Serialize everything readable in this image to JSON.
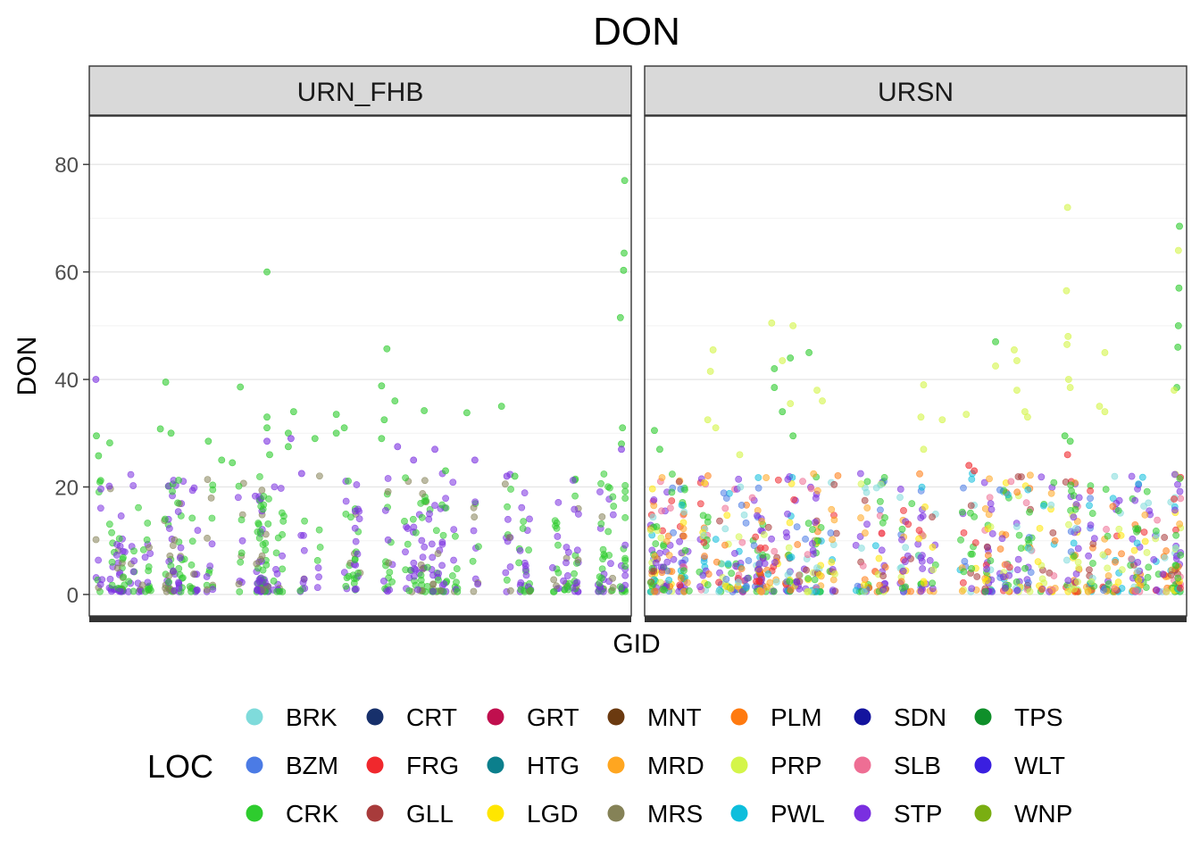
{
  "chart_data": {
    "type": "scatter",
    "title": "DON",
    "xlabel": "GID",
    "ylabel": "DON",
    "ylim": [
      -4,
      89
    ],
    "yticks": [
      0,
      20,
      40,
      60,
      80
    ],
    "y_gridlines": [
      0,
      10,
      20,
      30,
      40,
      50,
      60,
      70,
      80
    ],
    "grid": true,
    "facets": [
      "URN_FHB",
      "URSN"
    ],
    "point_opacity": 0.55,
    "legend": {
      "title": "LOC",
      "position": "bottom",
      "entries": [
        {
          "label": "BRK",
          "color": "#7FDBDB"
        },
        {
          "label": "BZM",
          "color": "#4B7BE5"
        },
        {
          "label": "CRK",
          "color": "#2ECC2E"
        },
        {
          "label": "CRT",
          "color": "#17306B"
        },
        {
          "label": "FRG",
          "color": "#F0282D"
        },
        {
          "label": "GLL",
          "color": "#A83B3B"
        },
        {
          "label": "GRT",
          "color": "#C00F4E"
        },
        {
          "label": "HTG",
          "color": "#0B7F8C"
        },
        {
          "label": "LGD",
          "color": "#FFE600"
        },
        {
          "label": "MNT",
          "color": "#6B3A10"
        },
        {
          "label": "MRD",
          "color": "#FFA620"
        },
        {
          "label": "MRS",
          "color": "#858257"
        },
        {
          "label": "PLM",
          "color": "#FF7A0F"
        },
        {
          "label": "PRP",
          "color": "#D4F54A"
        },
        {
          "label": "PWL",
          "color": "#0DBEDC"
        },
        {
          "label": "SDN",
          "color": "#14149E"
        },
        {
          "label": "SLB",
          "color": "#EE6E94"
        },
        {
          "label": "STP",
          "color": "#7A2FE0"
        },
        {
          "label": "TPS",
          "color": "#0F8F2A"
        },
        {
          "label": "WLT",
          "color": "#3A1FE0"
        },
        {
          "label": "WNP",
          "color": "#7AAE12"
        }
      ]
    },
    "highlight_points": {
      "URN_FHB": {
        "CRK": [
          [
            0.5,
            29.5
          ],
          [
            0.9,
            25.8
          ],
          [
            1.3,
            21.2
          ],
          [
            3.0,
            28.2
          ],
          [
            13.5,
            39.5
          ],
          [
            12.5,
            30.8
          ],
          [
            14.5,
            30.0
          ],
          [
            27.5,
            38.6
          ],
          [
            26.0,
            24.5
          ],
          [
            21.5,
            28.5
          ],
          [
            24.0,
            25.0
          ],
          [
            32.5,
            33.0
          ],
          [
            32.5,
            31.0
          ],
          [
            33.0,
            26.0
          ],
          [
            32.5,
            60.0
          ],
          [
            37.5,
            34.0
          ],
          [
            36.5,
            30.0
          ],
          [
            36.5,
            27.5
          ],
          [
            41.5,
            29.0
          ],
          [
            45.5,
            33.5
          ],
          [
            45.5,
            30.0
          ],
          [
            47.0,
            31.0
          ],
          [
            54.0,
            38.8
          ],
          [
            55.0,
            45.7
          ],
          [
            56.5,
            36.0
          ],
          [
            54.5,
            32.5
          ],
          [
            54.0,
            29.0
          ],
          [
            62.0,
            34.2
          ],
          [
            66.0,
            23.0
          ],
          [
            70.0,
            33.8
          ],
          [
            76.5,
            35.0
          ],
          [
            79.0,
            22.0
          ],
          [
            99.6,
            77.0
          ],
          [
            99.5,
            63.5
          ],
          [
            99.4,
            60.3
          ],
          [
            98.8,
            51.5
          ],
          [
            99.2,
            31.0
          ],
          [
            99.0,
            28.0
          ]
        ],
        "STP": [
          [
            0.4,
            40.0
          ],
          [
            32.5,
            28.5
          ],
          [
            37.0,
            29.0
          ],
          [
            39.0,
            22.5
          ],
          [
            57.0,
            27.5
          ],
          [
            60.0,
            25.0
          ],
          [
            64.0,
            27.0
          ],
          [
            71.5,
            25.0
          ],
          [
            77.5,
            22.0
          ],
          [
            99.0,
            27.0
          ]
        ]
      },
      "URSN": {
        "CRK": [
          [
            1.0,
            30.5
          ],
          [
            2.0,
            27.0
          ],
          [
            23.5,
            42.0
          ],
          [
            23.5,
            38.5
          ],
          [
            26.5,
            44.0
          ],
          [
            30.0,
            45.0
          ],
          [
            27.0,
            29.5
          ],
          [
            25.0,
            34.0
          ],
          [
            65.0,
            47.0
          ],
          [
            78.0,
            29.5
          ],
          [
            79.0,
            28.5
          ],
          [
            99.5,
            68.5
          ],
          [
            99.4,
            57.0
          ],
          [
            99.3,
            50.0
          ],
          [
            99.2,
            46.0
          ],
          [
            99.0,
            38.5
          ]
        ],
        "PRP": [
          [
            12.0,
            45.5
          ],
          [
            11.5,
            41.5
          ],
          [
            11.0,
            32.5
          ],
          [
            12.5,
            31.0
          ],
          [
            17.0,
            26.0
          ],
          [
            23.0,
            50.5
          ],
          [
            27.0,
            50.0
          ],
          [
            25.0,
            43.5
          ],
          [
            26.5,
            35.5
          ],
          [
            31.5,
            38.0
          ],
          [
            32.5,
            36.0
          ],
          [
            51.5,
            39.0
          ],
          [
            51.0,
            33.0
          ],
          [
            51.5,
            27.0
          ],
          [
            55.0,
            32.5
          ],
          [
            59.5,
            33.5
          ],
          [
            65.0,
            42.5
          ],
          [
            68.5,
            45.5
          ],
          [
            69.0,
            43.5
          ],
          [
            69.0,
            38.0
          ],
          [
            70.5,
            34.0
          ],
          [
            71.0,
            33.0
          ],
          [
            78.5,
            72.0
          ],
          [
            78.3,
            56.5
          ],
          [
            78.6,
            48.0
          ],
          [
            78.4,
            46.5
          ],
          [
            78.7,
            40.0
          ],
          [
            79.0,
            38.5
          ],
          [
            85.5,
            45.0
          ],
          [
            84.5,
            35.0
          ],
          [
            85.5,
            34.0
          ],
          [
            99.3,
            64.0
          ],
          [
            98.5,
            38.0
          ]
        ],
        "FRG": [
          [
            60.0,
            24.0
          ],
          [
            61.0,
            23.0
          ],
          [
            78.5,
            26.0
          ]
        ]
      }
    },
    "bulk_points_range": [
      0,
      22
    ]
  }
}
